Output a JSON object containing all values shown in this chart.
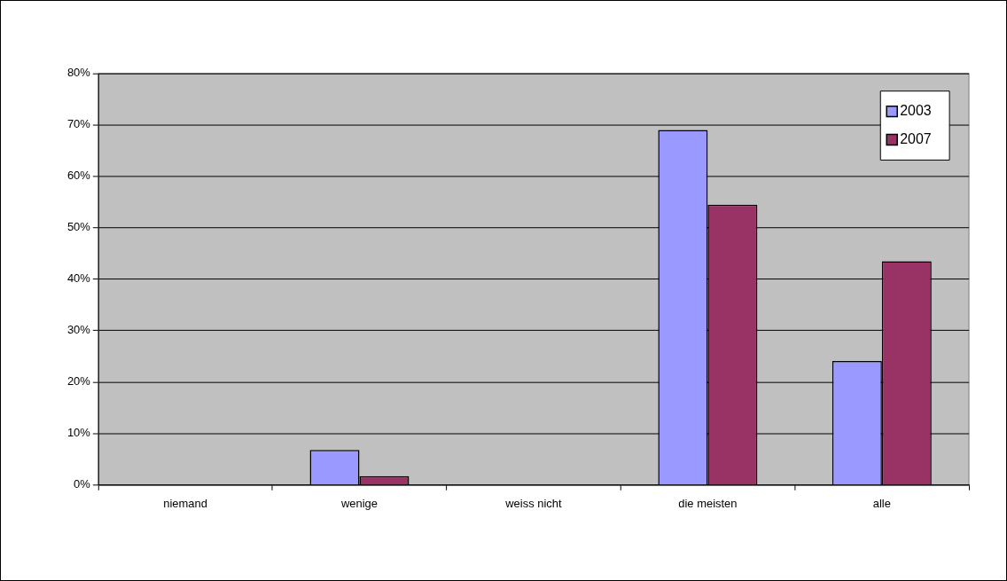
{
  "chart_data": {
    "type": "bar",
    "categories": [
      "niemand",
      "wenige",
      "weiss nicht",
      "die meisten",
      "alle"
    ],
    "series": [
      {
        "name": "2003",
        "color": "#9999ff",
        "values": [
          0,
          6.8,
          0,
          69.0,
          24.1
        ]
      },
      {
        "name": "2007",
        "color": "#993366",
        "values": [
          0,
          1.7,
          0,
          54.5,
          43.5
        ]
      }
    ],
    "ylim": [
      0,
      80
    ],
    "yticks": [
      {
        "value": 0,
        "label": "0%"
      },
      {
        "value": 10,
        "label": "10%"
      },
      {
        "value": 20,
        "label": "20%"
      },
      {
        "value": 30,
        "label": "30%"
      },
      {
        "value": 40,
        "label": "40%"
      },
      {
        "value": 50,
        "label": "50%"
      },
      {
        "value": 60,
        "label": "60%"
      },
      {
        "value": 70,
        "label": "70%"
      },
      {
        "value": 80,
        "label": "80%"
      }
    ],
    "grid": "y",
    "legend": "top right"
  }
}
